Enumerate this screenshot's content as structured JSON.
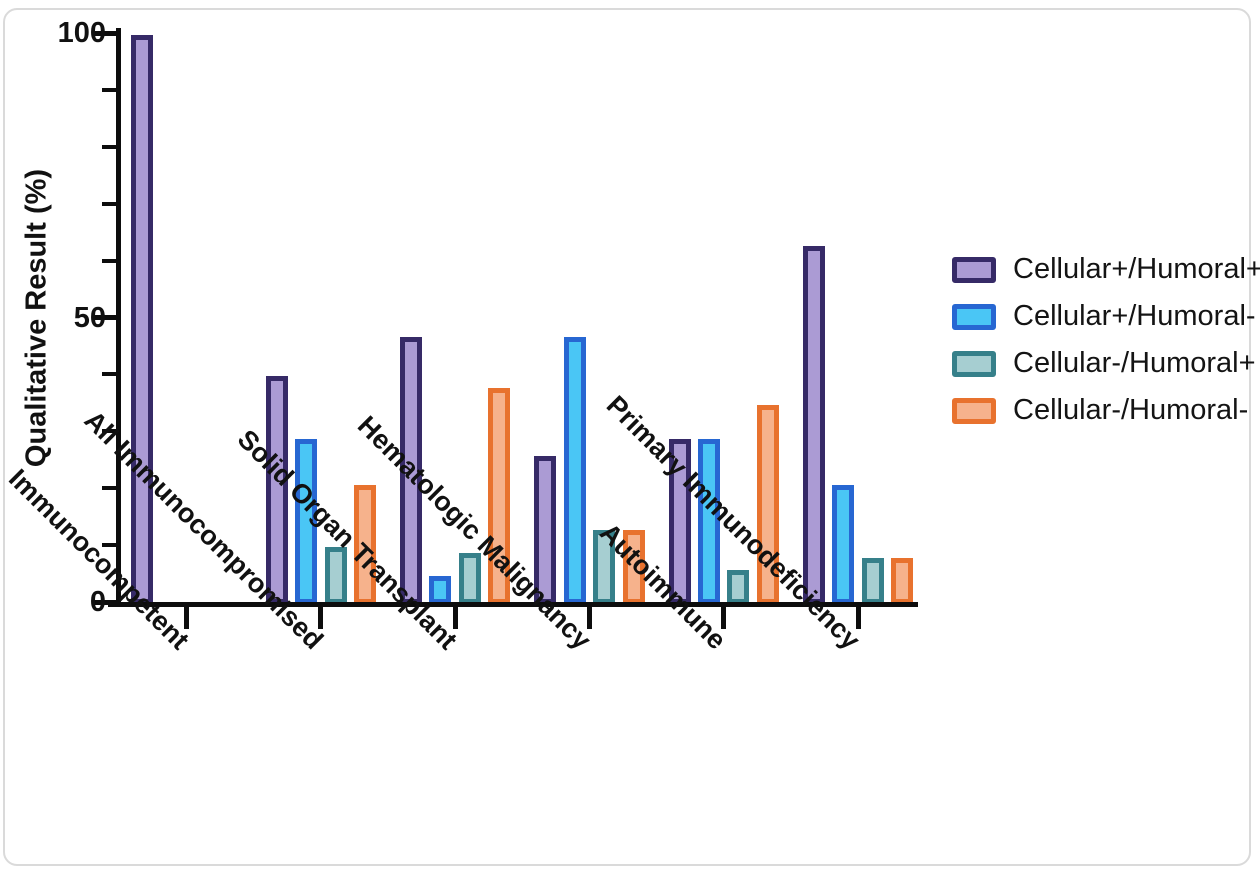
{
  "figure": {
    "background": "#ffffff",
    "card_border_color": "#dadada",
    "axis_color": "#0d0d0d",
    "text_color": "#111111"
  },
  "chart_data": {
    "type": "bar",
    "title": "",
    "xlabel": "",
    "ylabel": "Qualitative Result (%)",
    "ylim": [
      0,
      100
    ],
    "yticks_major": [
      0,
      50,
      100
    ],
    "ytick_minor_step": 10,
    "grid": false,
    "legend_position": "right",
    "categories": [
      "Immunocompetent",
      "All Immunocompromised",
      "Solid Organ Transplant",
      "Hematologic Malignancy",
      "Autoimmune",
      "Primary Immunodeficiency"
    ],
    "series": [
      {
        "name": "Cellular+/Humoral+",
        "fill": "#ab9bd4",
        "border": "#362a67",
        "values": [
          100,
          40,
          47,
          26,
          29,
          63
        ]
      },
      {
        "name": "Cellular+/Humoral-",
        "fill": "#4ac6f5",
        "border": "#2767d2",
        "values": [
          0,
          29,
          5,
          47,
          29,
          21
        ]
      },
      {
        "name": "Cellular-/Humoral+",
        "fill": "#a6ced1",
        "border": "#36808a",
        "values": [
          0,
          10,
          9,
          13,
          6,
          8
        ]
      },
      {
        "name": "Cellular-/Humoral-",
        "fill": "#f6b28c",
        "border": "#e8722e",
        "values": [
          0,
          21,
          38,
          13,
          35,
          8
        ]
      }
    ]
  }
}
